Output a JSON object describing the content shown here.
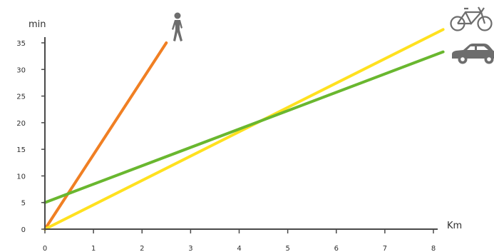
{
  "chart_data": {
    "type": "line",
    "ylabel": "min",
    "xlabel": "Km",
    "xlim": [
      0,
      8
    ],
    "ylim": [
      0,
      35
    ],
    "xticks": [
      0,
      1,
      2,
      3,
      4,
      5,
      6,
      7,
      8
    ],
    "yticks": [
      0,
      5,
      10,
      15,
      20,
      25,
      30,
      35
    ],
    "grid": false,
    "legend": "icons at line ends (walking person, bicycle, car)",
    "series": [
      {
        "icon": "walking-person-icon",
        "color": "#f07f23",
        "x": [
          0,
          2.5
        ],
        "y": [
          0,
          35
        ]
      },
      {
        "icon": "bicycle-icon",
        "color": "#ffe11f",
        "x": [
          0,
          8.2
        ],
        "y": [
          0,
          37.5
        ]
      },
      {
        "icon": "car-icon",
        "color": "#69b72f",
        "x": [
          0,
          8.2
        ],
        "y": [
          5,
          33.3
        ]
      }
    ]
  },
  "colors": {
    "axis": "#4a4a4a",
    "icon": "#6d6d6d"
  }
}
